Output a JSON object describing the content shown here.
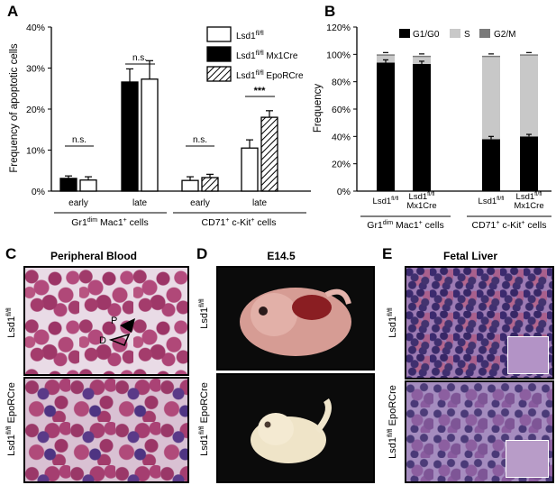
{
  "panel_letters": {
    "a": "A",
    "b": "B",
    "c": "C",
    "d": "D",
    "e": "E"
  },
  "panel_a": {
    "ylabel": "Frequency of apoptotic cells",
    "yticks": [
      "0%",
      "10%",
      "20%",
      "30%",
      "40%"
    ],
    "xticks": [
      "early",
      "late",
      "early",
      "late"
    ],
    "group_labels": [
      "Gr1dim Mac1+ cells",
      "CD71+ c-Kit+ cells"
    ],
    "significance": [
      "n.s.",
      "n.s.",
      "n.s.",
      "***"
    ],
    "legend": [
      "Lsd1fl/fl",
      "Lsd1fl/fl Mx1Cre",
      "Lsd1fl/fl EpoRCre"
    ]
  },
  "panel_b": {
    "ylabel": "Frequency",
    "yticks": [
      "0%",
      "20%",
      "40%",
      "60%",
      "80%",
      "100%",
      "120%"
    ],
    "legend": [
      "G1/G0",
      "S",
      "G2/M"
    ],
    "xticks": [
      "Lsd1fl/fl",
      "Lsd1fl/fl Mx1Cre",
      "Lsd1fl/fl",
      "Lsd1fl/fl Mx1Cre"
    ],
    "group_labels": [
      "Gr1dim Mac1+ cells",
      "CD71+ c-Kit+ cells"
    ]
  },
  "panel_c": {
    "title": "Peripheral Blood",
    "row_labels": [
      "Lsd1fl/fl",
      "Lsd1fl/fl EpoRCre"
    ],
    "arrows": [
      "P",
      "D"
    ]
  },
  "panel_d": {
    "title": "E14.5",
    "row_labels": [
      "Lsd1fl/fl",
      "Lsd1fl/fl EpoRCre"
    ]
  },
  "panel_e": {
    "title": "Fetal Liver",
    "row_labels": [
      "Lsd1fl/fl",
      "Lsd1fl/fl EpoRCre"
    ]
  },
  "colors": {
    "black": "#000000",
    "light_gray": "#c8c8c8",
    "dark_gray": "#7a7a7a"
  },
  "chart_data": [
    {
      "type": "bar",
      "categories": [
        "Gr1dim Mac1+ early",
        "Gr1dim Mac1+ late",
        "CD71+ c-Kit+ early",
        "CD71+ c-Kit+ late"
      ],
      "series": [
        {
          "name": "Lsd1fl/fl",
          "values": [
            2.7,
            27.3,
            2.6,
            10.5
          ],
          "errors": [
            0.8,
            4.5,
            0.9,
            2.0
          ]
        },
        {
          "name": "Lsd1fl/fl Mx1Cre",
          "values": [
            3.1,
            26.6,
            null,
            null
          ],
          "errors": [
            0.6,
            3.2,
            null,
            null
          ]
        },
        {
          "name": "Lsd1fl/fl EpoRCre",
          "values": [
            null,
            null,
            3.3,
            18.0
          ],
          "errors": [
            null,
            null,
            0.8,
            1.6
          ]
        }
      ],
      "ylabel": "Frequency of apoptotic cells",
      "ylim": [
        0,
        40
      ]
    },
    {
      "type": "bar",
      "stacked": true,
      "categories": [
        "Lsd1fl/fl",
        "Lsd1fl/fl Mx1Cre",
        "Lsd1fl/fl",
        "Lsd1fl/fl Mx1Cre"
      ],
      "series": [
        {
          "name": "G1/G0",
          "values": [
            94,
            93,
            38,
            40
          ],
          "errors": [
            2,
            2,
            2,
            1.5
          ]
        },
        {
          "name": "S",
          "values": [
            5,
            5,
            60,
            59
          ]
        },
        {
          "name": "G2/M",
          "values": [
            1,
            1,
            1,
            1
          ]
        }
      ],
      "ylabel": "Frequency",
      "ylim": [
        0,
        120
      ]
    }
  ]
}
